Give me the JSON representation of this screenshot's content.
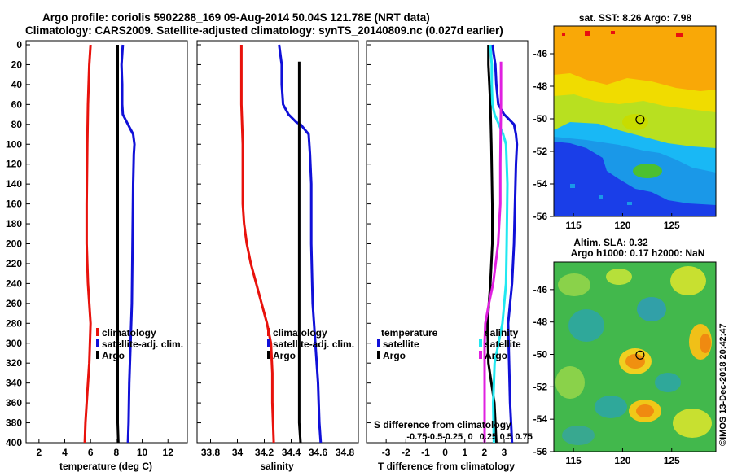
{
  "header": {
    "line1": "Argo profile: coriolis 5902288_169 09-Aug-2014 50.04S 121.78E (NRT data)",
    "line2": "Climatology: CARS2009. Satellite-adjusted climatology: synTS_20140809.nc (0.027d earlier)"
  },
  "colors": {
    "climatology": "#e8120c",
    "satellite": "#1010d8",
    "argo": "#000000",
    "sal_diff": "#e020e0",
    "sal_sat": "#20e8f0"
  },
  "depth_axis": {
    "min": 0,
    "max": 400,
    "ticks": [
      0,
      20,
      40,
      60,
      80,
      100,
      120,
      140,
      160,
      180,
      200,
      220,
      240,
      260,
      280,
      300,
      320,
      340,
      360,
      380,
      400
    ]
  },
  "chart_data": [
    {
      "type": "line",
      "name": "temperature",
      "xlabel": "temperature (deg C)",
      "ylabel": "depth",
      "xlim": [
        1,
        13.5
      ],
      "ylim": [
        400,
        0
      ],
      "xticks": [
        2,
        4,
        6,
        8,
        10,
        12
      ],
      "legend": [
        "climatology",
        "satellite-adj. clim.",
        "Argo"
      ],
      "series": [
        {
          "name": "climatology",
          "color_key": "climatology",
          "depth": [
            0,
            20,
            60,
            100,
            160,
            200,
            240,
            260,
            280,
            300,
            320,
            340,
            360,
            380,
            400
          ],
          "values": [
            6.0,
            5.9,
            5.8,
            5.75,
            5.7,
            5.7,
            5.8,
            5.9,
            6.0,
            5.95,
            5.9,
            5.8,
            5.7,
            5.6,
            5.55
          ]
        },
        {
          "name": "satellite-adj. clim.",
          "color_key": "satellite",
          "depth": [
            0,
            20,
            40,
            60,
            70,
            80,
            90,
            100,
            110,
            140,
            200,
            260,
            300,
            340,
            380,
            400
          ],
          "values": [
            8.5,
            8.4,
            8.45,
            8.45,
            8.5,
            8.9,
            9.3,
            9.4,
            9.35,
            9.3,
            9.25,
            9.2,
            9.1,
            9.0,
            8.95,
            8.9
          ]
        },
        {
          "name": "Argo",
          "color_key": "argo",
          "depth": [
            0,
            20,
            40,
            60,
            80,
            100,
            140,
            200,
            260,
            300,
            340,
            380,
            400
          ],
          "values": [
            8.1,
            8.1,
            8.1,
            8.1,
            8.1,
            8.1,
            8.1,
            8.1,
            8.1,
            8.1,
            8.1,
            8.1,
            8.15
          ]
        }
      ]
    },
    {
      "type": "line",
      "name": "salinity",
      "xlabel": "salinity",
      "ylabel": "depth",
      "xlim": [
        33.7,
        34.9
      ],
      "xticks": [
        33.8,
        34,
        34.2,
        34.4,
        34.6,
        34.8
      ],
      "legend": [
        "climatology",
        "satellite-adj. clim.",
        "Argo"
      ],
      "series": [
        {
          "name": "climatology",
          "color_key": "climatology",
          "depth": [
            0,
            20,
            60,
            100,
            160,
            180,
            200,
            220,
            240,
            260,
            280,
            300,
            330,
            360,
            400
          ],
          "values": [
            34.03,
            34.03,
            34.03,
            34.04,
            34.04,
            34.05,
            34.07,
            34.1,
            34.14,
            34.18,
            34.22,
            34.25,
            34.26,
            34.26,
            34.27
          ]
        },
        {
          "name": "satellite-adj. clim.",
          "color_key": "satellite",
          "depth": [
            0,
            20,
            40,
            60,
            70,
            78,
            80,
            90,
            110,
            140,
            200,
            260,
            300,
            340,
            380,
            400
          ],
          "values": [
            34.31,
            34.33,
            34.33,
            34.34,
            34.38,
            34.44,
            34.47,
            34.53,
            34.54,
            34.55,
            34.55,
            34.56,
            34.58,
            34.6,
            34.61,
            34.62
          ]
        },
        {
          "name": "Argo",
          "color_key": "argo",
          "depth": [
            17,
            40,
            80,
            120,
            200,
            260,
            300,
            340,
            380,
            400
          ],
          "values": [
            34.46,
            34.46,
            34.46,
            34.46,
            34.46,
            34.46,
            34.46,
            34.46,
            34.46,
            34.47
          ]
        }
      ]
    },
    {
      "type": "line",
      "name": "difference",
      "xlabel": "T difference from climatology",
      "x2label": "S difference from climatology",
      "xlim": [
        -4,
        4.2
      ],
      "xticks": [
        -3,
        -2,
        -1,
        0,
        1,
        2,
        3
      ],
      "x2ticks": [
        -0.75,
        -0.5,
        -0.25,
        0,
        0.25,
        0.5,
        0.75
      ],
      "x2tick_labels": [
        "-0.75",
        "-0.5",
        "-0.25",
        "0",
        "0.25",
        "0.5",
        "0.75"
      ],
      "legend_t": [
        "temperature",
        "satellite",
        "Argo"
      ],
      "legend_s": [
        "salinity",
        "satellite",
        "Argo"
      ],
      "series": [
        {
          "name": "T satellite",
          "color_key": "satellite",
          "depth": [
            0,
            20,
            40,
            60,
            70,
            80,
            90,
            100,
            120,
            160,
            200,
            240,
            280,
            320,
            360,
            400
          ],
          "values": [
            2.4,
            2.55,
            2.6,
            2.7,
            3.0,
            3.5,
            3.6,
            3.65,
            3.6,
            3.55,
            3.5,
            3.4,
            3.2,
            3.25,
            3.3,
            3.4
          ]
        },
        {
          "name": "T Argo",
          "color_key": "argo",
          "depth": [
            0,
            20,
            60,
            100,
            160,
            200,
            240,
            280,
            320,
            360,
            400
          ],
          "values": [
            2.2,
            2.2,
            2.3,
            2.35,
            2.4,
            2.4,
            2.3,
            2.15,
            2.2,
            2.5,
            2.6
          ]
        },
        {
          "name": "S satellite",
          "color_key": "sal_sat",
          "depth": [
            0,
            20,
            40,
            60,
            70,
            80,
            90,
            100,
            140,
            200,
            240,
            280,
            320,
            360,
            400
          ],
          "values": [
            0.28,
            0.3,
            0.3,
            0.31,
            0.34,
            0.4,
            0.46,
            0.5,
            0.52,
            0.51,
            0.5,
            0.45,
            0.34,
            0.32,
            0.33
          ]
        },
        {
          "name": "S Argo",
          "color_key": "sal_diff",
          "depth": [
            17,
            60,
            120,
            160,
            200,
            240,
            260,
            280,
            300,
            340,
            380,
            400
          ],
          "values": [
            0.43,
            0.43,
            0.42,
            0.42,
            0.39,
            0.32,
            0.26,
            0.21,
            0.2,
            0.2,
            0.2,
            0.2
          ]
        }
      ]
    }
  ],
  "maps": {
    "sst": {
      "title": "sat. SST: 8.26 Argo: 7.98",
      "xticks": [
        115,
        120,
        125
      ],
      "yticks": [
        -46,
        -48,
        -50,
        -52,
        -54,
        -56
      ],
      "xlim": [
        113,
        129.5
      ],
      "ylim": [
        -56,
        -44.3
      ],
      "marker": {
        "lon": 121.78,
        "lat": -50.04
      }
    },
    "sla": {
      "title1": "Altim. SLA: 0.32",
      "title2": "Argo h1000: 0.17 h2000: NaN",
      "xticks": [
        115,
        120,
        125
      ],
      "yticks": [
        -46,
        -48,
        -50,
        -52,
        -54,
        -56
      ],
      "xlim": [
        113,
        129.5
      ],
      "ylim": [
        -56,
        -44.3
      ],
      "marker": {
        "lon": 121.78,
        "lat": -50.04
      }
    }
  },
  "footer": {
    "credit": "©IMOS 13-Dec-2018 20:42:47"
  }
}
